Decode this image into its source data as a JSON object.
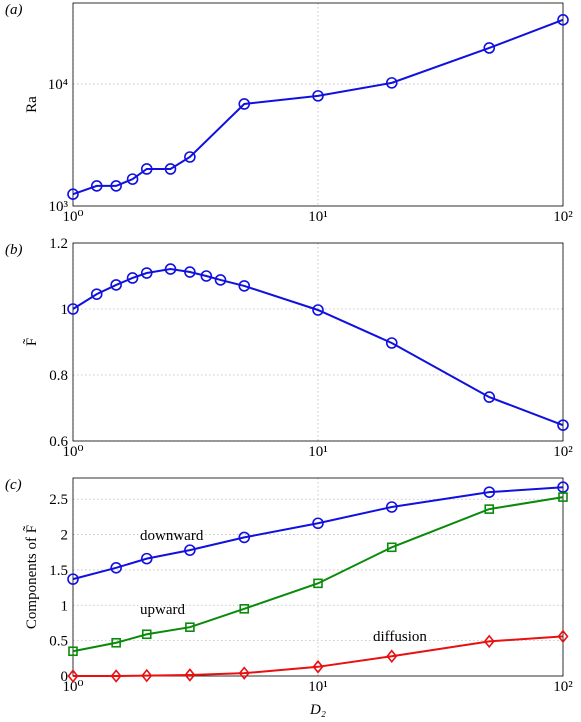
{
  "chart_data": [
    {
      "type": "line",
      "label": "(a)",
      "ylabel": "Ra",
      "xscale": "log",
      "yscale": "log",
      "grid": true,
      "xlim": [
        1,
        100
      ],
      "xticks": [
        {
          "value": 1,
          "label": "10⁰"
        },
        {
          "value": 10,
          "label": "10¹"
        },
        {
          "value": 100,
          "label": "10²"
        }
      ],
      "ylim": [
        1000,
        46000
      ],
      "yticks": [
        {
          "value": 1000,
          "label": "10³"
        },
        {
          "value": 10000,
          "label": "10⁴"
        }
      ],
      "x": [
        1,
        1.25,
        1.5,
        1.75,
        2,
        2.5,
        3,
        5,
        10,
        20,
        50,
        100
      ],
      "series": [
        {
          "color": "#1010e0",
          "marker": "circle",
          "values": [
            1250,
            1460,
            1460,
            1660,
            2010,
            2010,
            2520,
            6850,
            7980,
            10200,
            19700,
            33500
          ]
        }
      ]
    },
    {
      "type": "line",
      "label": "(b)",
      "ylabel": "F̃",
      "xscale": "log",
      "yscale": "linear",
      "grid": true,
      "xlim": [
        1,
        100
      ],
      "xticks": [
        {
          "value": 1,
          "label": "10⁰"
        },
        {
          "value": 10,
          "label": "10¹"
        },
        {
          "value": 100,
          "label": "10²"
        }
      ],
      "ylim": [
        0.6,
        1.2
      ],
      "yticks": [
        0.6,
        0.8,
        1,
        1.2
      ],
      "x": [
        1,
        1.25,
        1.5,
        1.75,
        2,
        2.5,
        3,
        3.5,
        4,
        5,
        10,
        20,
        50,
        100
      ],
      "series": [
        {
          "color": "#1010e0",
          "marker": "circle",
          "values": [
            1.0,
            1.045,
            1.073,
            1.094,
            1.109,
            1.121,
            1.112,
            1.1,
            1.088,
            1.07,
            0.997,
            0.897,
            0.733,
            0.648
          ]
        }
      ]
    },
    {
      "type": "line",
      "label": "(c)",
      "ylabel": "Components of F̃",
      "xlabel": "D₂",
      "xscale": "log",
      "yscale": "linear",
      "grid": true,
      "xlim": [
        1,
        100
      ],
      "xticks": [
        {
          "value": 1,
          "label": "10⁰"
        },
        {
          "value": 10,
          "label": "10¹"
        },
        {
          "value": 100,
          "label": "10²"
        }
      ],
      "ylim": [
        0,
        2.8
      ],
      "yticks": [
        0,
        0.5,
        1,
        1.5,
        2,
        2.5
      ],
      "x": [
        1,
        1.5,
        2,
        3,
        5,
        10,
        20,
        50,
        100
      ],
      "annotations": [
        "downward",
        "upward",
        "diffusion"
      ],
      "series": [
        {
          "name": "downward",
          "color": "#1010e0",
          "marker": "circle",
          "values": [
            1.37,
            1.53,
            1.66,
            1.78,
            1.96,
            2.16,
            2.39,
            2.6,
            2.67
          ]
        },
        {
          "name": "upward",
          "color": "#0a8a0a",
          "marker": "square",
          "values": [
            0.35,
            0.47,
            0.59,
            0.69,
            0.95,
            1.31,
            1.82,
            2.36,
            2.53
          ]
        },
        {
          "name": "diffusion",
          "color": "#e81010",
          "marker": "diamond",
          "values": [
            0,
            0,
            0.005,
            0.015,
            0.04,
            0.13,
            0.28,
            0.49,
            0.56
          ]
        }
      ]
    }
  ]
}
